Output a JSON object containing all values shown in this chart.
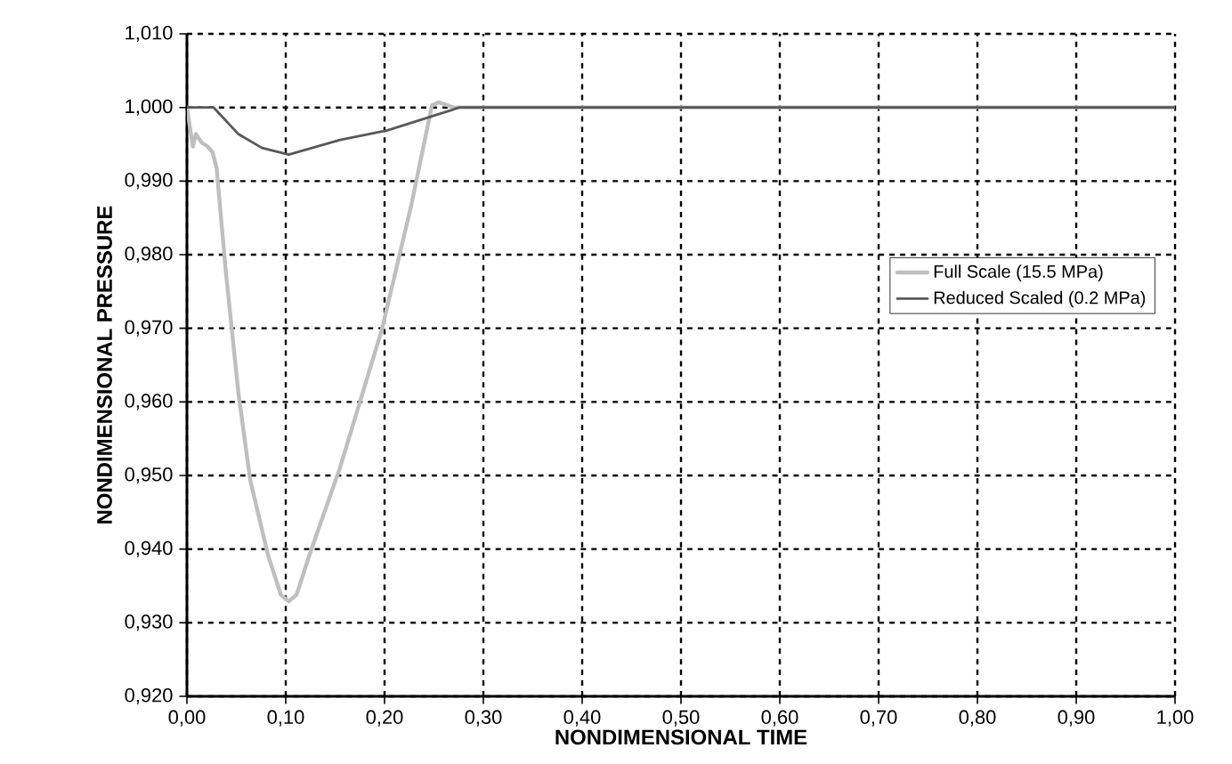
{
  "chart_data": {
    "type": "line",
    "xlabel": "NONDIMENSIONAL TIME",
    "ylabel": "NONDIMENSIONAL PRESSURE",
    "xlim": [
      0,
      1
    ],
    "ylim": [
      0.92,
      1.01
    ],
    "xticks": [
      {
        "value": 0,
        "label": "0,00"
      },
      {
        "value": 0.1,
        "label": "0,10"
      },
      {
        "value": 0.2,
        "label": "0,20"
      },
      {
        "value": 0.3,
        "label": "0,30"
      },
      {
        "value": 0.4,
        "label": "0,40"
      },
      {
        "value": 0.5,
        "label": "0,50"
      },
      {
        "value": 0.6,
        "label": "0,60"
      },
      {
        "value": 0.7,
        "label": "0,70"
      },
      {
        "value": 0.8,
        "label": "0,80"
      },
      {
        "value": 0.9,
        "label": "0,90"
      },
      {
        "value": 1,
        "label": "1,00"
      }
    ],
    "yticks": [
      {
        "value": 0.92,
        "label": "0,920"
      },
      {
        "value": 0.93,
        "label": "0,930"
      },
      {
        "value": 0.94,
        "label": "0,940"
      },
      {
        "value": 0.95,
        "label": "0,950"
      },
      {
        "value": 0.96,
        "label": "0,960"
      },
      {
        "value": 0.97,
        "label": "0,970"
      },
      {
        "value": 0.98,
        "label": "0,980"
      },
      {
        "value": 0.99,
        "label": "0,990"
      },
      {
        "value": 1.0,
        "label": "1,000"
      },
      {
        "value": 1.01,
        "label": "1,010"
      }
    ],
    "grid": true,
    "legend": "right",
    "marker": "none",
    "line_style": "solid",
    "series": [
      {
        "name": "Full Scale (15.5 MPa)",
        "color": "#bfbfbf",
        "x": [
          0,
          0.006,
          0.009,
          0.015,
          0.021,
          0.026,
          0.03,
          0.039,
          0.052,
          0.064,
          0.082,
          0.095,
          0.103,
          0.111,
          0.124,
          0.155,
          0.197,
          0.227,
          0.248,
          0.255,
          0.27,
          1.0
        ],
        "values": [
          1.0,
          0.9947,
          0.9964,
          0.9952,
          0.9947,
          0.9939,
          0.9918,
          0.9782,
          0.9613,
          0.9494,
          0.9392,
          0.9338,
          0.9329,
          0.9338,
          0.9392,
          0.9511,
          0.9697,
          0.9867,
          1.0003,
          1.0007,
          1.0,
          1.0
        ]
      },
      {
        "name": "Reduced Scaled (0.2 MPa)",
        "color": "#595959",
        "x": [
          0,
          0.027,
          0.052,
          0.076,
          0.103,
          0.155,
          0.203,
          0.276,
          1.0
        ],
        "values": [
          1.0,
          1.0,
          0.9964,
          0.9945,
          0.9936,
          0.9956,
          0.9969,
          1.0,
          1.0
        ]
      }
    ]
  }
}
